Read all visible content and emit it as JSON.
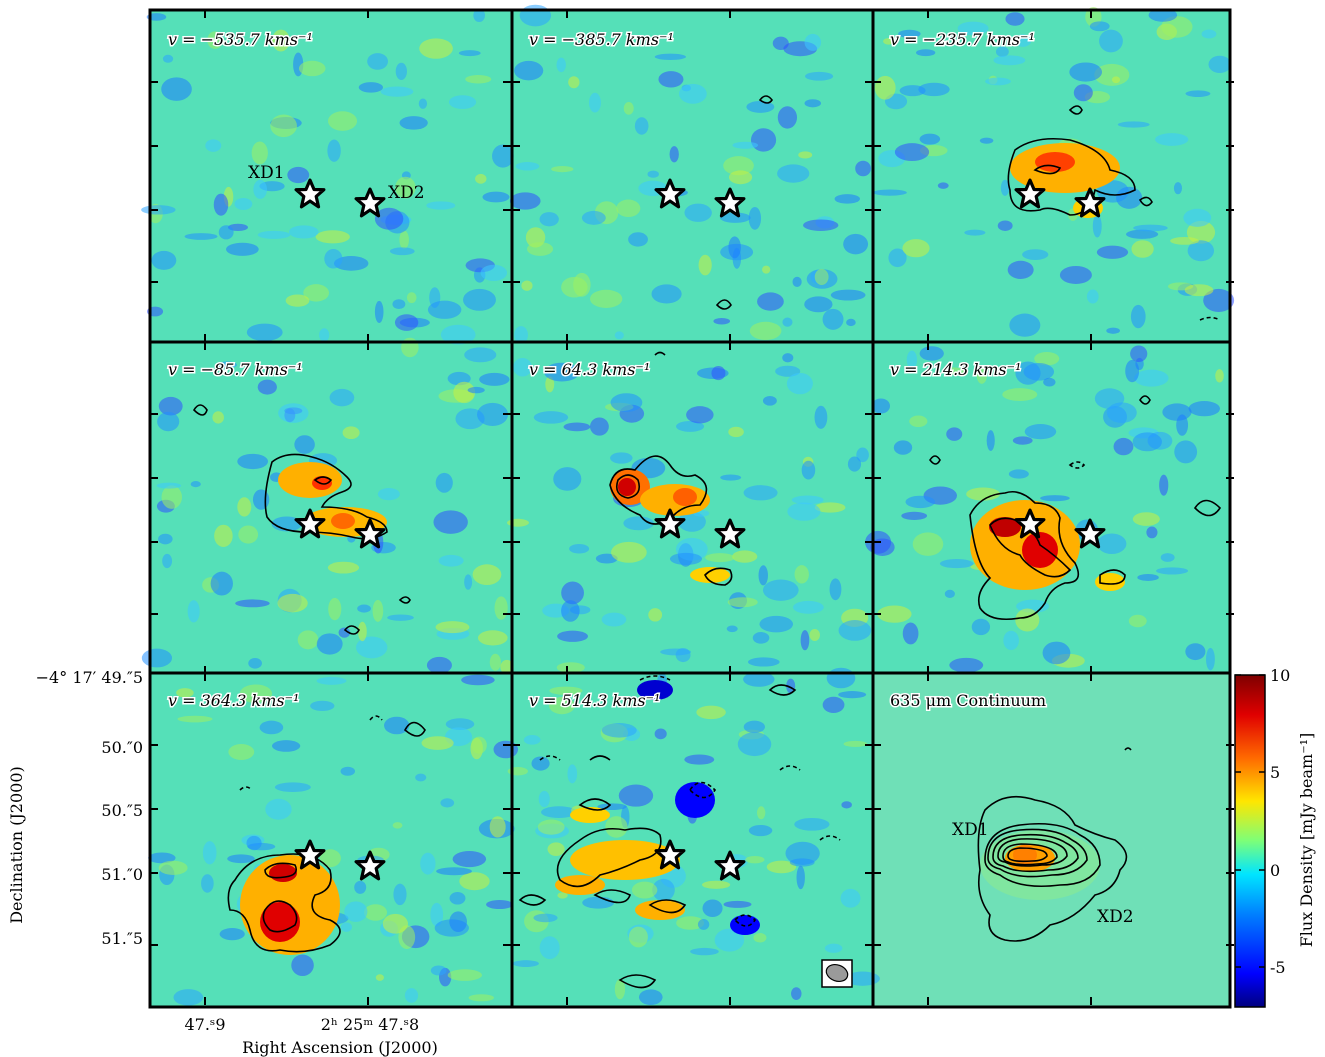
{
  "panels": [
    {
      "id": "p1",
      "label": "v = −535.7 kms⁻¹",
      "contours": [],
      "stars": true,
      "star_labels": [
        "XD1",
        "XD2"
      ]
    },
    {
      "id": "p2",
      "label": "v = −385.7 kms⁻¹",
      "contours": [
        "small"
      ],
      "stars": true
    },
    {
      "id": "p3",
      "label": "v = −235.7 kms⁻¹",
      "contours": [
        "emission"
      ],
      "stars": true
    },
    {
      "id": "p4",
      "label": "v = −85.7 kms⁻¹",
      "contours": [
        "emission"
      ],
      "stars": true
    },
    {
      "id": "p5",
      "label": "v = 64.3 kms⁻¹",
      "contours": [
        "emission"
      ],
      "stars": true
    },
    {
      "id": "p6",
      "label": "v = 214.3 kms⁻¹",
      "contours": [
        "emission"
      ],
      "stars": true
    },
    {
      "id": "p7",
      "label": "v = 364.3 kms⁻¹",
      "contours": [
        "emission"
      ],
      "stars": true
    },
    {
      "id": "p8",
      "label": "v = 514.3 kms⁻¹",
      "contours": [
        "emission",
        "negative"
      ],
      "stars": true,
      "beam": true
    },
    {
      "id": "p9",
      "label": "635 μm Continuum",
      "contours": [
        "continuum"
      ],
      "stars": false,
      "source_labels": [
        "XD1",
        "XD2"
      ]
    }
  ],
  "axes": {
    "y_title": "Declination (J2000)",
    "y_ticks": [
      "−4° 17′ 49.″5",
      "50.″0",
      "50.″5",
      "51.″0",
      "51.″5"
    ],
    "x_title": "Right Ascension (J2000)",
    "x_ticks": [
      "47.ˢ9",
      "2ʰ 25ᵐ 47.ˢ8"
    ]
  },
  "colorbar": {
    "title": "Flux Density [mJy beam⁻¹]",
    "ticks": [
      "10",
      "5",
      "0",
      "-5"
    ],
    "range": [
      -7,
      10
    ],
    "colors": [
      "#00007f",
      "#0000ff",
      "#0080ff",
      "#00e5ff",
      "#7cff79",
      "#ffe600",
      "#ff6a00",
      "#e00000",
      "#7f0000"
    ]
  }
}
